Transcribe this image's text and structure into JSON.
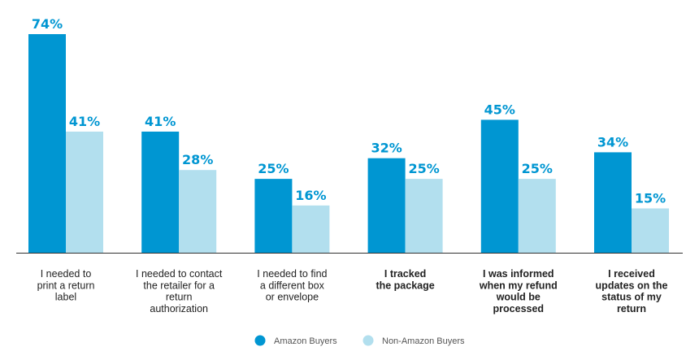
{
  "chart_data": {
    "type": "bar",
    "categories": [
      "I needed to print a return label",
      "I needed to contact the retailer for a return authorization",
      "I needed to find a different box or envelope",
      "I tracked the package",
      "I was informed when my refund would be processed",
      "I received updates on the status of my return"
    ],
    "category_lines": [
      [
        "I needed to",
        "print a return",
        "label"
      ],
      [
        "I needed to contact",
        "the retailer for a",
        "return",
        "authorization"
      ],
      [
        "I needed to find",
        "a different box",
        "or envelope"
      ],
      [
        "I tracked",
        "the package"
      ],
      [
        "I was informed",
        "when my refund",
        "would be",
        "processed"
      ],
      [
        "I received",
        "updates on the",
        "status of my",
        "return"
      ]
    ],
    "category_bold": [
      false,
      false,
      false,
      true,
      true,
      true
    ],
    "series": [
      {
        "name": "Amazon Buyers",
        "color": "#0096d2",
        "values": [
          74,
          41,
          25,
          32,
          45,
          34
        ],
        "labels": [
          "74%",
          "41%",
          "25%",
          "32%",
          "45%",
          "34%"
        ]
      },
      {
        "name": "Non-Amazon Buyers",
        "color": "#b2dfee",
        "values": [
          41,
          28,
          16,
          25,
          25,
          15
        ],
        "labels": [
          "41%",
          "28%",
          "16%",
          "25%",
          "25%",
          "15%"
        ]
      }
    ],
    "ylim": [
      0,
      74
    ],
    "label_color": "#0096d2",
    "legend_position": "bottom-center",
    "title": "",
    "xlabel": "",
    "ylabel": "",
    "grid": false
  }
}
